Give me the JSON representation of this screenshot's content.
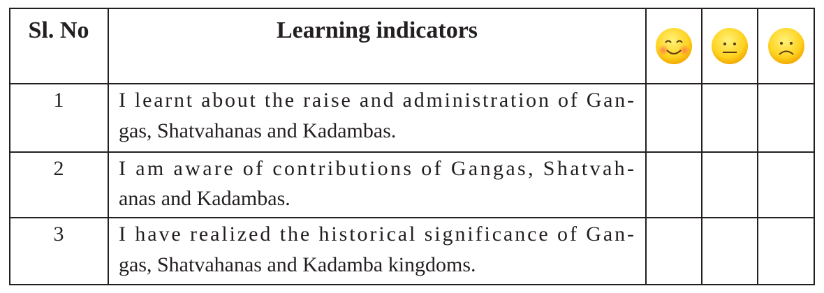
{
  "table": {
    "header": [
      "Sl. No",
      "Learning indicators"
    ],
    "rows": [
      {
        "number": "1",
        "lines": [
          "I learnt about the raise and administration of Gan-",
          "gas, Shatvahanas and Kadambas."
        ]
      },
      {
        "number": "2",
        "lines": [
          "I am aware of contributions of Gangas, Shatvah-",
          "anas and Kadambas."
        ]
      },
      {
        "number": "3",
        "lines": [
          "I have realized the historical significance of Gan-",
          "gas, Shatvahanas and Kadamba kingdoms."
        ]
      }
    ]
  }
}
